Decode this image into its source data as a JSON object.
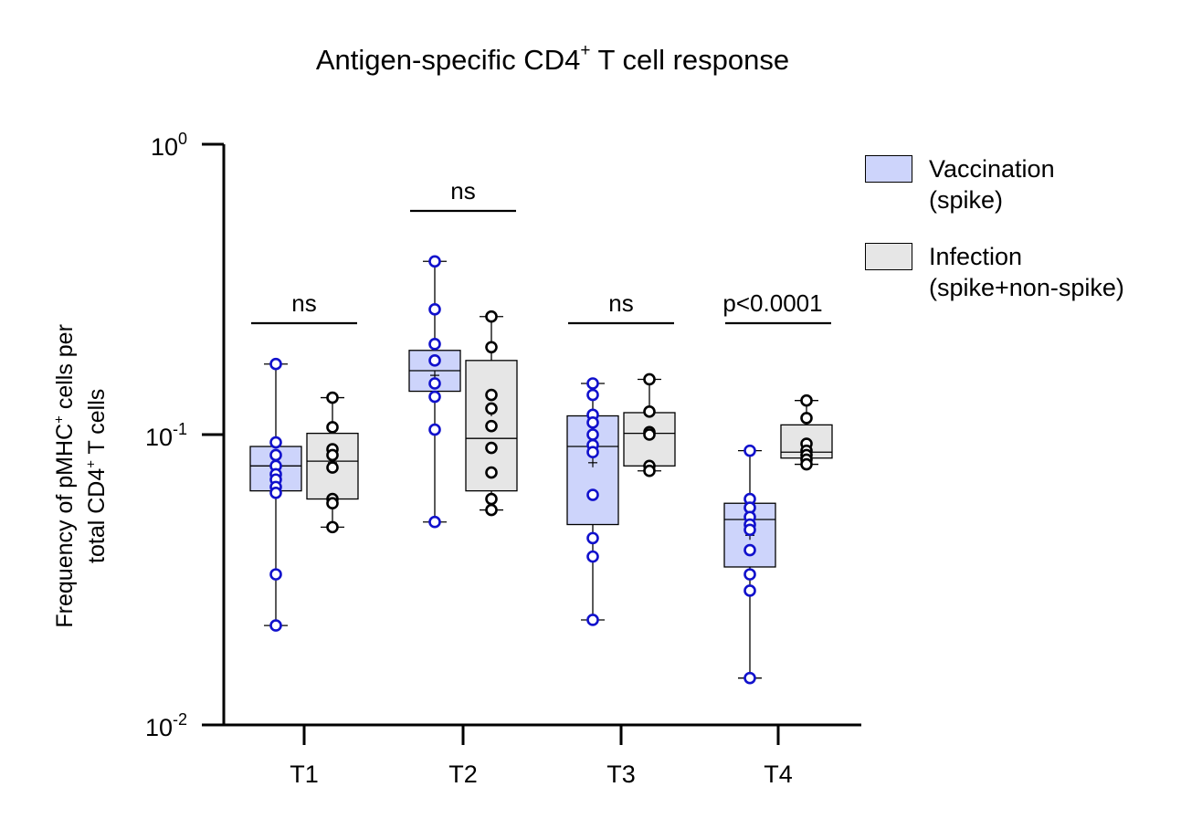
{
  "chart_data": {
    "type": "box",
    "title_main": "Antigen-specific CD4",
    "title_sup": "+",
    "title_rest": " T cell response",
    "ylabel_line1_a": "Frequency of pMHC",
    "ylabel_line1_sup": "+",
    "ylabel_line1_b": " cells per",
    "ylabel_line2_a": "total CD4",
    "ylabel_line2_sup": "+",
    "ylabel_line2_b": " T cells",
    "yscale": "log",
    "ylim": [
      0.01,
      1
    ],
    "y_ticks": [
      {
        "value": 1,
        "base": "10",
        "exp": "0"
      },
      {
        "value": 0.1,
        "base": "10",
        "exp": "-1"
      },
      {
        "value": 0.01,
        "base": "10",
        "exp": "-2"
      }
    ],
    "categories": [
      "T1",
      "T2",
      "T3",
      "T4"
    ],
    "legend_position": "right",
    "series": [
      {
        "name_line1": "Vaccination",
        "name_line2": "(spike)",
        "fill": "#cdd4fb",
        "point_color": "#1111cc",
        "groups": [
          {
            "min": 0.022,
            "q1": 0.064,
            "median": 0.078,
            "q3": 0.091,
            "max": 0.175,
            "mean": 0.075,
            "points": [
              0.175,
              0.094,
              0.085,
              0.078,
              0.073,
              0.07,
              0.066,
              0.063,
              0.033,
              0.022
            ]
          },
          {
            "min": 0.05,
            "q1": 0.141,
            "median": 0.166,
            "q3": 0.195,
            "max": 0.395,
            "mean": 0.16,
            "points": [
              0.395,
              0.27,
              0.205,
              0.18,
              0.15,
              0.135,
              0.104,
              0.05
            ]
          },
          {
            "min": 0.023,
            "q1": 0.049,
            "median": 0.091,
            "q3": 0.116,
            "max": 0.15,
            "mean": 0.08,
            "points": [
              0.15,
              0.137,
              0.117,
              0.11,
              0.1,
              0.092,
              0.087,
              0.062,
              0.044,
              0.038,
              0.023
            ]
          },
          {
            "min": 0.0145,
            "q1": 0.035,
            "median": 0.051,
            "q3": 0.058,
            "max": 0.088,
            "mean": 0.045,
            "points": [
              0.088,
              0.06,
              0.056,
              0.052,
              0.049,
              0.047,
              0.04,
              0.033,
              0.029,
              0.0145
            ]
          }
        ]
      },
      {
        "name_line1": "Infection",
        "name_line2": "(spike+non-spike)",
        "fill": "#e6e6e6",
        "point_color": "#000000",
        "groups": [
          {
            "min": 0.048,
            "q1": 0.06,
            "median": 0.081,
            "q3": 0.101,
            "max": 0.134,
            "mean": 0.08,
            "points": [
              0.134,
              0.106,
              0.089,
              0.085,
              0.077,
              0.06,
              0.058,
              0.048
            ]
          },
          {
            "min": 0.055,
            "q1": 0.064,
            "median": 0.097,
            "q3": 0.18,
            "max": 0.255,
            "mean": 0.12,
            "points": [
              0.255,
              0.2,
              0.137,
              0.123,
              0.107,
              0.09,
              0.074,
              0.06,
              0.055
            ]
          },
          {
            "min": 0.075,
            "q1": 0.078,
            "median": 0.101,
            "q3": 0.119,
            "max": 0.155,
            "mean": 0.1,
            "points": [
              0.155,
              0.12,
              0.102,
              0.1,
              0.078,
              0.075
            ]
          },
          {
            "min": 0.079,
            "q1": 0.083,
            "median": 0.087,
            "q3": 0.108,
            "max": 0.131,
            "mean": 0.092,
            "points": [
              0.131,
              0.114,
              0.093,
              0.088,
              0.085,
              0.082,
              0.079
            ]
          }
        ]
      }
    ],
    "annotations": [
      "ns",
      "ns",
      "ns",
      "p<0.0001"
    ]
  }
}
